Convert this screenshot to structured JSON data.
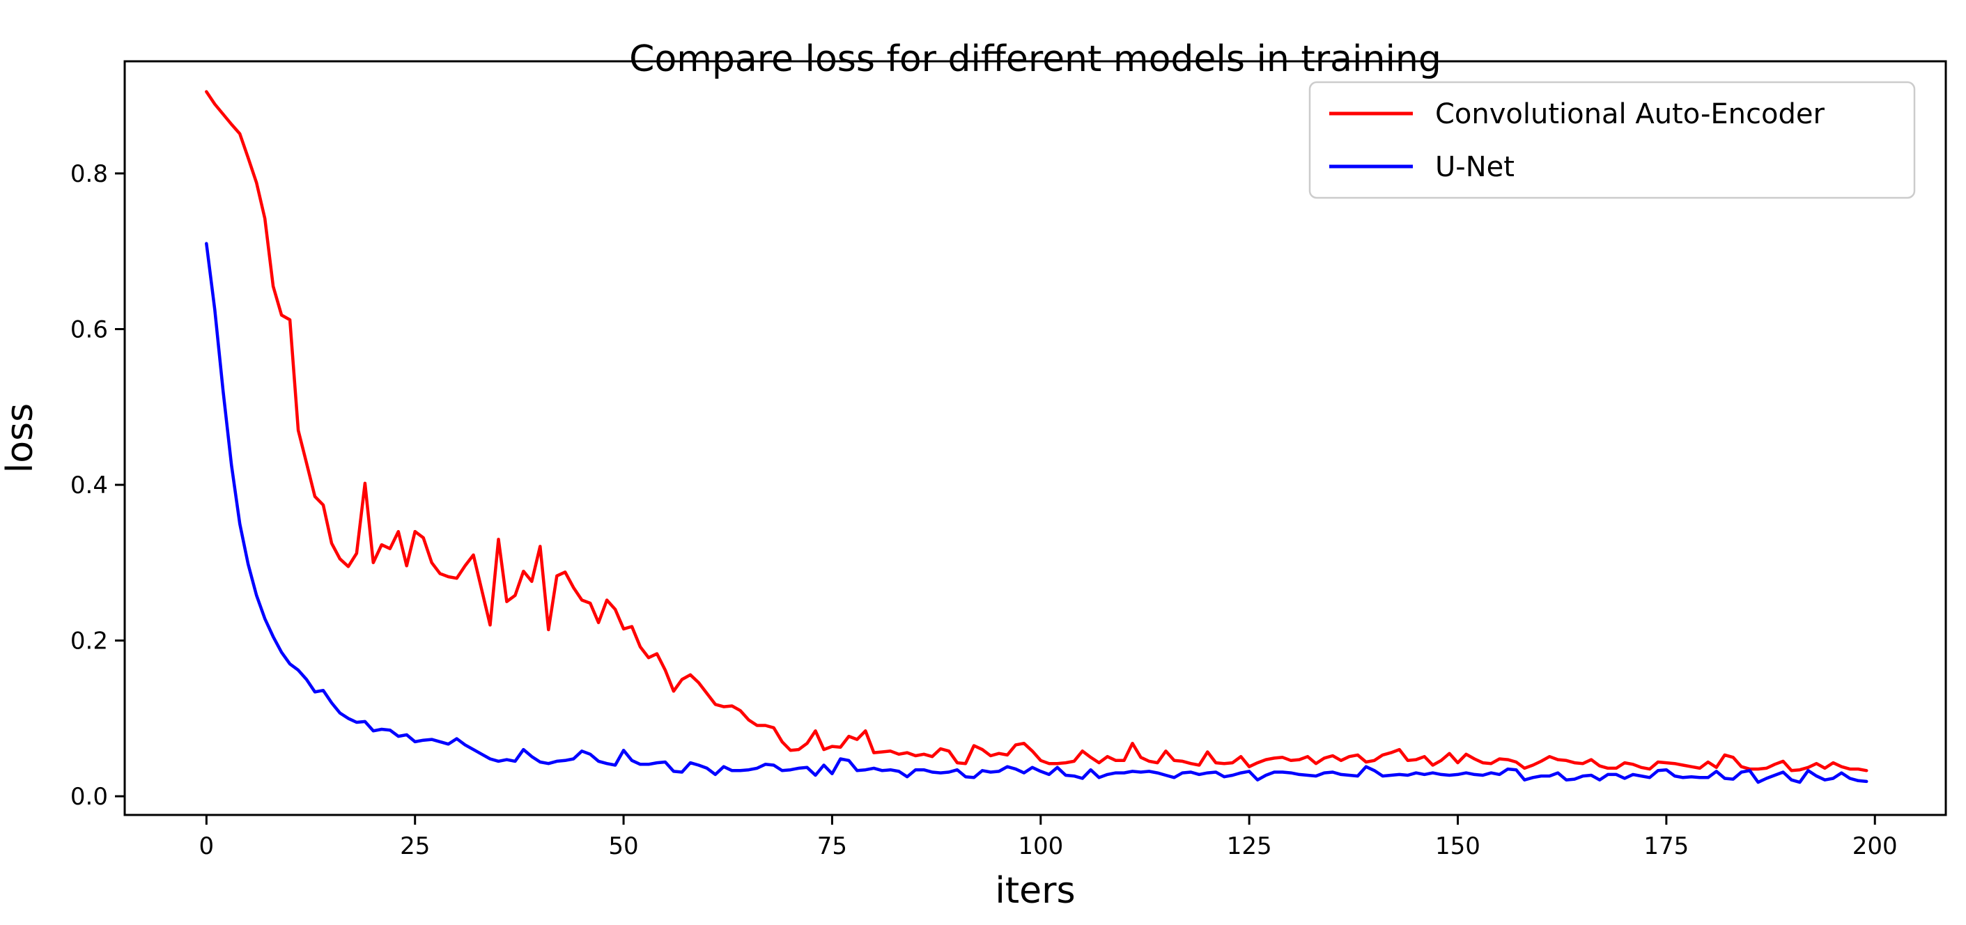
{
  "figure": {
    "background": "#ffffff",
    "axes_edge_color": "#000000"
  },
  "chart_data": {
    "type": "line",
    "title": "Compare loss for different models in training",
    "xlabel": "iters",
    "ylabel": "loss",
    "grid": false,
    "legend_position": "upper right",
    "xlim": [
      -9.8,
      208.5
    ],
    "ylim": [
      -0.024,
      0.944
    ],
    "x_ticks": [
      0,
      25,
      50,
      75,
      100,
      125,
      150,
      175,
      200
    ],
    "x_tick_labels": [
      "0",
      "25",
      "50",
      "75",
      "100",
      "125",
      "150",
      "175",
      "200"
    ],
    "y_ticks": [
      0.0,
      0.2,
      0.4,
      0.6,
      0.8
    ],
    "y_tick_labels": [
      "0.0",
      "0.2",
      "0.4",
      "0.6",
      "0.8"
    ],
    "x_start": 0,
    "x_step": 1,
    "series": [
      {
        "name": "Convolutional Auto-Encoder",
        "color": "#ff0000",
        "values": [
          0.905,
          0.889,
          0.876,
          0.863,
          0.851,
          0.82,
          0.788,
          0.742,
          0.655,
          0.618,
          0.612,
          0.47,
          0.428,
          0.385,
          0.374,
          0.325,
          0.305,
          0.295,
          0.312,
          0.402,
          0.3,
          0.323,
          0.318,
          0.34,
          0.296,
          0.34,
          0.332,
          0.3,
          0.286,
          0.282,
          0.28,
          0.296,
          0.31,
          0.265,
          0.22,
          0.33,
          0.25,
          0.258,
          0.289,
          0.276,
          0.321,
          0.214,
          0.283,
          0.288,
          0.268,
          0.252,
          0.248,
          0.223,
          0.252,
          0.24,
          0.215,
          0.218,
          0.192,
          0.178,
          0.183,
          0.162,
          0.135,
          0.15,
          0.156,
          0.146,
          0.132,
          0.118,
          0.115,
          0.116,
          0.11,
          0.098,
          0.091,
          0.091,
          0.088,
          0.07,
          0.059,
          0.06,
          0.068,
          0.084,
          0.06,
          0.064,
          0.063,
          0.077,
          0.073,
          0.084,
          0.056,
          0.057,
          0.058,
          0.054,
          0.056,
          0.052,
          0.054,
          0.051,
          0.061,
          0.058,
          0.043,
          0.042,
          0.065,
          0.06,
          0.052,
          0.055,
          0.053,
          0.066,
          0.068,
          0.058,
          0.046,
          0.042,
          0.042,
          0.043,
          0.045,
          0.058,
          0.05,
          0.043,
          0.051,
          0.046,
          0.046,
          0.068,
          0.05,
          0.045,
          0.043,
          0.058,
          0.046,
          0.045,
          0.042,
          0.04,
          0.057,
          0.043,
          0.042,
          0.043,
          0.051,
          0.038,
          0.043,
          0.047,
          0.049,
          0.05,
          0.046,
          0.047,
          0.051,
          0.042,
          0.049,
          0.052,
          0.046,
          0.051,
          0.053,
          0.044,
          0.046,
          0.053,
          0.056,
          0.06,
          0.046,
          0.047,
          0.051,
          0.04,
          0.046,
          0.055,
          0.043,
          0.054,
          0.048,
          0.043,
          0.042,
          0.048,
          0.047,
          0.044,
          0.036,
          0.04,
          0.045,
          0.051,
          0.047,
          0.046,
          0.043,
          0.042,
          0.047,
          0.039,
          0.036,
          0.036,
          0.043,
          0.041,
          0.037,
          0.035,
          0.044,
          0.043,
          0.042,
          0.04,
          0.038,
          0.036,
          0.044,
          0.037,
          0.053,
          0.05,
          0.038,
          0.035,
          0.035,
          0.036,
          0.041,
          0.045,
          0.033,
          0.034,
          0.037,
          0.042,
          0.036,
          0.043,
          0.038,
          0.035,
          0.035,
          0.033
        ]
      },
      {
        "name": "U-Net",
        "color": "#0000ff",
        "values": [
          0.71,
          0.625,
          0.52,
          0.425,
          0.35,
          0.298,
          0.258,
          0.228,
          0.205,
          0.185,
          0.17,
          0.162,
          0.15,
          0.134,
          0.136,
          0.12,
          0.107,
          0.1,
          0.095,
          0.096,
          0.084,
          0.086,
          0.085,
          0.077,
          0.079,
          0.07,
          0.072,
          0.073,
          0.07,
          0.067,
          0.074,
          0.066,
          0.06,
          0.054,
          0.048,
          0.045,
          0.047,
          0.045,
          0.06,
          0.051,
          0.044,
          0.042,
          0.045,
          0.046,
          0.048,
          0.058,
          0.054,
          0.045,
          0.042,
          0.04,
          0.059,
          0.046,
          0.041,
          0.041,
          0.043,
          0.044,
          0.032,
          0.031,
          0.043,
          0.04,
          0.036,
          0.028,
          0.038,
          0.033,
          0.033,
          0.034,
          0.036,
          0.041,
          0.04,
          0.033,
          0.034,
          0.036,
          0.037,
          0.027,
          0.04,
          0.029,
          0.048,
          0.046,
          0.033,
          0.034,
          0.036,
          0.033,
          0.034,
          0.032,
          0.025,
          0.034,
          0.034,
          0.031,
          0.03,
          0.031,
          0.034,
          0.025,
          0.024,
          0.033,
          0.031,
          0.032,
          0.038,
          0.035,
          0.03,
          0.037,
          0.032,
          0.028,
          0.037,
          0.027,
          0.026,
          0.023,
          0.034,
          0.024,
          0.028,
          0.03,
          0.03,
          0.032,
          0.031,
          0.032,
          0.03,
          0.027,
          0.024,
          0.03,
          0.031,
          0.028,
          0.03,
          0.031,
          0.025,
          0.027,
          0.03,
          0.032,
          0.021,
          0.027,
          0.031,
          0.031,
          0.03,
          0.028,
          0.027,
          0.026,
          0.03,
          0.031,
          0.028,
          0.027,
          0.026,
          0.038,
          0.033,
          0.026,
          0.027,
          0.028,
          0.027,
          0.03,
          0.028,
          0.03,
          0.028,
          0.027,
          0.028,
          0.03,
          0.028,
          0.027,
          0.03,
          0.028,
          0.035,
          0.034,
          0.021,
          0.024,
          0.026,
          0.026,
          0.03,
          0.021,
          0.022,
          0.026,
          0.027,
          0.021,
          0.028,
          0.028,
          0.023,
          0.028,
          0.026,
          0.024,
          0.033,
          0.034,
          0.026,
          0.024,
          0.025,
          0.024,
          0.024,
          0.032,
          0.023,
          0.022,
          0.031,
          0.033,
          0.018,
          0.023,
          0.027,
          0.031,
          0.021,
          0.018,
          0.033,
          0.026,
          0.021,
          0.023,
          0.03,
          0.023,
          0.02,
          0.019
        ]
      }
    ]
  }
}
